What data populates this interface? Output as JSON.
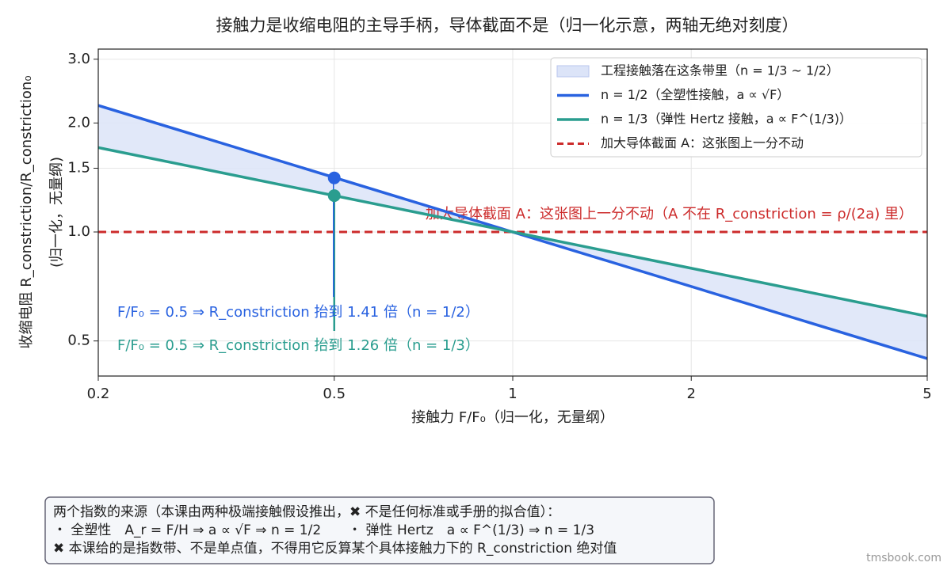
{
  "chart_data": {
    "type": "line",
    "title": "接触力是收缩电阻的主导手柄，导体截面不是（归一化示意，两轴无绝对刻度）",
    "xlabel": "接触力 F/F₀（归一化，无量纲）",
    "ylabel": [
      "收缩电阻 R_constriction/R_constriction₀",
      "(归一化，无量纲)"
    ],
    "x": [
      0.2,
      5
    ],
    "xlim": [
      0.2,
      5
    ],
    "ylim": [
      0.4,
      3.2
    ],
    "log_x": true,
    "log_y": true,
    "grid": true,
    "xticks": [
      0.2,
      0.5,
      1,
      2,
      5
    ],
    "yticks": [
      0.5,
      {
        "value": 1,
        "label": "1.0"
      },
      1.5,
      {
        "value": 2,
        "label": "2.0"
      },
      {
        "value": 3,
        "label": "3.0"
      }
    ],
    "band": {
      "name": "工程接触落在这条带里（n = 1/3 ~ 1/2）",
      "color": "#dce4f8"
    },
    "series": [
      {
        "name": "n = 1/2（全塑性接触，a ∝ √F）",
        "color": "#2962e0",
        "values": [
          2.236,
          0.447
        ]
      },
      {
        "name": "n = 1/3（弹性 Hertz 接触，a ∝ F^(1/3)）",
        "color": "#2a9d8f",
        "values": [
          1.71,
          0.585
        ]
      }
    ],
    "reference_line": {
      "name": "加大导体截面 A：这张图上一分不动",
      "value": 1,
      "color": "#cc2b2b",
      "annotation": "加大导体截面 A：这张图上一分不动（A 不在 R_constriction = ρ/(2a) 里）"
    },
    "highlight": {
      "x": 0.5,
      "values": [
        1.41,
        1.26
      ],
      "labels": [
        "F/F₀ = 0.5 ⇒ R_constriction 抬到 1.41 倍（n = 1/2）",
        "F/F₀ = 0.5 ⇒ R_constriction 抬到 1.26 倍（n = 1/3）"
      ]
    },
    "legend": "upper right"
  },
  "note": {
    "lines": [
      "两个指数的来源（本课由两种极端接触假设推出，✖ 不是任何标准或手册的拟合值）：",
      "・ 全塑性　A_r = F/H ⇒ a ∝ √F ⇒ n = 1/2　　・ 弹性 Hertz　a ∝ F^(1/3) ⇒ n = 1/3",
      "✖ 本课给的是指数带、不是单点值，不得用它反算某个具体接触力下的 R_constriction 绝对值"
    ]
  },
  "watermark": "tmsbook.com"
}
